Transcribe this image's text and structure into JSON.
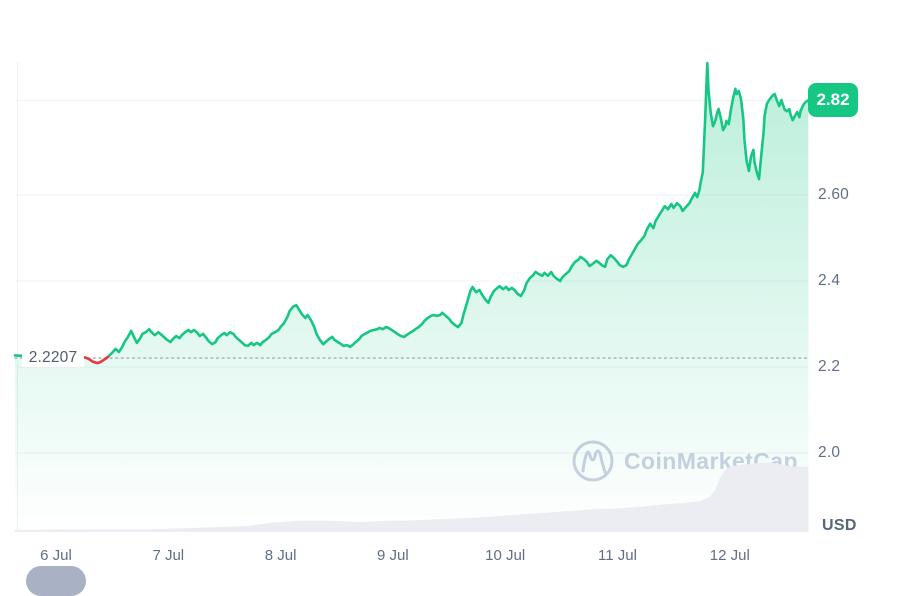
{
  "price_badge": {
    "label": "2.82",
    "color": "#16c784"
  },
  "baseline": {
    "label": "2.2207"
  },
  "axis": {
    "currency_label": "USD",
    "y_labels": [
      "2.60",
      "2.4",
      "2.2",
      "2.0"
    ],
    "x_labels": [
      "6 Jul",
      "7 Jul",
      "8 Jul",
      "9 Jul",
      "10 Jul",
      "11 Jul",
      "12 Jul"
    ]
  },
  "watermark": {
    "label": "CoinMarketCap"
  },
  "chart_data": {
    "type": "area",
    "ylabel": "USD",
    "x_unit": "days since 6 Jul 00:00",
    "ylim": [
      1.95,
      2.95
    ],
    "x_range_days": [
      -0.365,
      6.7
    ],
    "grid": "horizontal",
    "baseline_price": 2.2207,
    "last_price": 2.82,
    "high_price": 2.907,
    "line_color": "#16c784",
    "down_color": "#ea3943",
    "y_axis": {
      "gridline_prices": [
        2.82,
        2.6,
        2.4,
        2.2,
        2.0
      ],
      "ticks": [
        {
          "price": 2.6,
          "label": "2.60"
        },
        {
          "price": 2.4,
          "label": "2.4"
        },
        {
          "price": 2.2,
          "label": "2.2"
        },
        {
          "price": 2.0,
          "label": "2.0"
        }
      ]
    },
    "x_axis": {
      "ticks": [
        {
          "day": 0,
          "label": "6 Jul"
        },
        {
          "day": 1,
          "label": "7 Jul"
        },
        {
          "day": 2,
          "label": "8 Jul"
        },
        {
          "day": 3,
          "label": "9 Jul"
        },
        {
          "day": 4,
          "label": "10 Jul"
        },
        {
          "day": 5,
          "label": "11 Jul"
        },
        {
          "day": 6,
          "label": "12 Jul"
        }
      ]
    },
    "price": {
      "name": "price-usd",
      "red_segment_days": [
        0.26,
        0.47
      ],
      "points": [
        [
          -0.365,
          2.227
        ],
        [
          -0.3,
          2.226
        ],
        [
          -0.23,
          2.224
        ],
        [
          -0.14,
          2.223
        ],
        [
          -0.05,
          2.223
        ],
        [
          0.04,
          2.223
        ],
        [
          0.12,
          2.224
        ],
        [
          0.2,
          2.223
        ],
        [
          0.26,
          2.222
        ],
        [
          0.29,
          2.219
        ],
        [
          0.33,
          2.212
        ],
        [
          0.37,
          2.209
        ],
        [
          0.4,
          2.212
        ],
        [
          0.44,
          2.219
        ],
        [
          0.46,
          2.223
        ],
        [
          0.5,
          2.233
        ],
        [
          0.53,
          2.242
        ],
        [
          0.56,
          2.235
        ],
        [
          0.59,
          2.247
        ],
        [
          0.61,
          2.258
        ],
        [
          0.64,
          2.27
        ],
        [
          0.67,
          2.284
        ],
        [
          0.69,
          2.272
        ],
        [
          0.72,
          2.256
        ],
        [
          0.75,
          2.267
        ],
        [
          0.77,
          2.277
        ],
        [
          0.8,
          2.281
        ],
        [
          0.83,
          2.288
        ],
        [
          0.85,
          2.281
        ],
        [
          0.88,
          2.274
        ],
        [
          0.91,
          2.281
        ],
        [
          0.93,
          2.277
        ],
        [
          0.96,
          2.27
        ],
        [
          0.99,
          2.263
        ],
        [
          1.02,
          2.258
        ],
        [
          1.04,
          2.265
        ],
        [
          1.07,
          2.272
        ],
        [
          1.1,
          2.267
        ],
        [
          1.12,
          2.274
        ],
        [
          1.15,
          2.281
        ],
        [
          1.18,
          2.286
        ],
        [
          1.2,
          2.281
        ],
        [
          1.23,
          2.286
        ],
        [
          1.26,
          2.279
        ],
        [
          1.28,
          2.272
        ],
        [
          1.31,
          2.277
        ],
        [
          1.34,
          2.267
        ],
        [
          1.36,
          2.26
        ],
        [
          1.39,
          2.253
        ],
        [
          1.42,
          2.258
        ],
        [
          1.44,
          2.267
        ],
        [
          1.47,
          2.274
        ],
        [
          1.5,
          2.279
        ],
        [
          1.52,
          2.274
        ],
        [
          1.55,
          2.281
        ],
        [
          1.58,
          2.277
        ],
        [
          1.6,
          2.27
        ],
        [
          1.63,
          2.263
        ],
        [
          1.66,
          2.256
        ],
        [
          1.68,
          2.251
        ],
        [
          1.71,
          2.249
        ],
        [
          1.74,
          2.256
        ],
        [
          1.76,
          2.251
        ],
        [
          1.79,
          2.256
        ],
        [
          1.82,
          2.251
        ],
        [
          1.84,
          2.258
        ],
        [
          1.87,
          2.263
        ],
        [
          1.9,
          2.27
        ],
        [
          1.92,
          2.277
        ],
        [
          1.95,
          2.281
        ],
        [
          1.98,
          2.286
        ],
        [
          2.0,
          2.293
        ],
        [
          2.03,
          2.302
        ],
        [
          2.06,
          2.316
        ],
        [
          2.08,
          2.33
        ],
        [
          2.11,
          2.34
        ],
        [
          2.14,
          2.344
        ],
        [
          2.16,
          2.335
        ],
        [
          2.19,
          2.323
        ],
        [
          2.22,
          2.314
        ],
        [
          2.24,
          2.321
        ],
        [
          2.27,
          2.309
        ],
        [
          2.3,
          2.293
        ],
        [
          2.32,
          2.277
        ],
        [
          2.35,
          2.263
        ],
        [
          2.38,
          2.253
        ],
        [
          2.4,
          2.258
        ],
        [
          2.43,
          2.265
        ],
        [
          2.46,
          2.27
        ],
        [
          2.48,
          2.263
        ],
        [
          2.51,
          2.258
        ],
        [
          2.54,
          2.253
        ],
        [
          2.56,
          2.249
        ],
        [
          2.59,
          2.251
        ],
        [
          2.62,
          2.247
        ],
        [
          2.64,
          2.251
        ],
        [
          2.67,
          2.258
        ],
        [
          2.7,
          2.265
        ],
        [
          2.72,
          2.272
        ],
        [
          2.75,
          2.277
        ],
        [
          2.78,
          2.281
        ],
        [
          2.8,
          2.284
        ],
        [
          2.83,
          2.286
        ],
        [
          2.86,
          2.288
        ],
        [
          2.88,
          2.291
        ],
        [
          2.91,
          2.288
        ],
        [
          2.94,
          2.293
        ],
        [
          2.96,
          2.291
        ],
        [
          2.99,
          2.286
        ],
        [
          3.02,
          2.281
        ],
        [
          3.04,
          2.277
        ],
        [
          3.07,
          2.272
        ],
        [
          3.1,
          2.27
        ],
        [
          3.12,
          2.274
        ],
        [
          3.15,
          2.279
        ],
        [
          3.18,
          2.284
        ],
        [
          3.2,
          2.288
        ],
        [
          3.23,
          2.293
        ],
        [
          3.26,
          2.3
        ],
        [
          3.28,
          2.307
        ],
        [
          3.31,
          2.314
        ],
        [
          3.34,
          2.319
        ],
        [
          3.36,
          2.321
        ],
        [
          3.39,
          2.319
        ],
        [
          3.42,
          2.321
        ],
        [
          3.44,
          2.326
        ],
        [
          3.47,
          2.319
        ],
        [
          3.5,
          2.312
        ],
        [
          3.52,
          2.305
        ],
        [
          3.55,
          2.298
        ],
        [
          3.58,
          2.293
        ],
        [
          3.61,
          2.302
        ],
        [
          3.63,
          2.323
        ],
        [
          3.66,
          2.349
        ],
        [
          3.69,
          2.377
        ],
        [
          3.71,
          2.386
        ],
        [
          3.74,
          2.374
        ],
        [
          3.77,
          2.379
        ],
        [
          3.79,
          2.37
        ],
        [
          3.82,
          2.358
        ],
        [
          3.85,
          2.349
        ],
        [
          3.87,
          2.363
        ],
        [
          3.9,
          2.377
        ],
        [
          3.93,
          2.384
        ],
        [
          3.95,
          2.388
        ],
        [
          3.98,
          2.381
        ],
        [
          4.01,
          2.386
        ],
        [
          4.03,
          2.379
        ],
        [
          4.06,
          2.384
        ],
        [
          4.09,
          2.377
        ],
        [
          4.11,
          2.37
        ],
        [
          4.14,
          2.365
        ],
        [
          4.17,
          2.379
        ],
        [
          4.19,
          2.395
        ],
        [
          4.22,
          2.407
        ],
        [
          4.25,
          2.414
        ],
        [
          4.27,
          2.421
        ],
        [
          4.3,
          2.416
        ],
        [
          4.33,
          2.412
        ],
        [
          4.35,
          2.419
        ],
        [
          4.38,
          2.412
        ],
        [
          4.41,
          2.421
        ],
        [
          4.43,
          2.412
        ],
        [
          4.46,
          2.405
        ],
        [
          4.49,
          2.4
        ],
        [
          4.51,
          2.409
        ],
        [
          4.54,
          2.416
        ],
        [
          4.57,
          2.423
        ],
        [
          4.59,
          2.433
        ],
        [
          4.62,
          2.444
        ],
        [
          4.65,
          2.449
        ],
        [
          4.67,
          2.456
        ],
        [
          4.7,
          2.451
        ],
        [
          4.73,
          2.444
        ],
        [
          4.75,
          2.435
        ],
        [
          4.78,
          2.44
        ],
        [
          4.81,
          2.447
        ],
        [
          4.83,
          2.444
        ],
        [
          4.86,
          2.437
        ],
        [
          4.89,
          2.433
        ],
        [
          4.91,
          2.451
        ],
        [
          4.94,
          2.46
        ],
        [
          4.97,
          2.453
        ],
        [
          5.0,
          2.444
        ],
        [
          5.02,
          2.437
        ],
        [
          5.05,
          2.433
        ],
        [
          5.08,
          2.437
        ],
        [
          5.1,
          2.449
        ],
        [
          5.13,
          2.463
        ],
        [
          5.16,
          2.477
        ],
        [
          5.18,
          2.486
        ],
        [
          5.21,
          2.495
        ],
        [
          5.24,
          2.505
        ],
        [
          5.26,
          2.519
        ],
        [
          5.29,
          2.533
        ],
        [
          5.32,
          2.523
        ],
        [
          5.34,
          2.54
        ],
        [
          5.37,
          2.553
        ],
        [
          5.4,
          2.565
        ],
        [
          5.42,
          2.574
        ],
        [
          5.45,
          2.567
        ],
        [
          5.48,
          2.579
        ],
        [
          5.5,
          2.57
        ],
        [
          5.53,
          2.581
        ],
        [
          5.56,
          2.574
        ],
        [
          5.58,
          2.563
        ],
        [
          5.61,
          2.572
        ],
        [
          5.64,
          2.581
        ],
        [
          5.66,
          2.591
        ],
        [
          5.69,
          2.605
        ],
        [
          5.71,
          2.595
        ],
        [
          5.73,
          2.612
        ],
        [
          5.74,
          2.628
        ],
        [
          5.76,
          2.653
        ],
        [
          5.78,
          2.774
        ],
        [
          5.8,
          2.907
        ],
        [
          5.81,
          2.844
        ],
        [
          5.83,
          2.791
        ],
        [
          5.85,
          2.76
        ],
        [
          5.87,
          2.772
        ],
        [
          5.89,
          2.793
        ],
        [
          5.9,
          2.8
        ],
        [
          5.92,
          2.779
        ],
        [
          5.94,
          2.751
        ],
        [
          5.96,
          2.76
        ],
        [
          5.97,
          2.772
        ],
        [
          5.99,
          2.765
        ],
        [
          6.01,
          2.798
        ],
        [
          6.03,
          2.826
        ],
        [
          6.05,
          2.847
        ],
        [
          6.06,
          2.835
        ],
        [
          6.08,
          2.842
        ],
        [
          6.1,
          2.823
        ],
        [
          6.12,
          2.777
        ],
        [
          6.13,
          2.73
        ],
        [
          6.15,
          2.679
        ],
        [
          6.17,
          2.656
        ],
        [
          6.19,
          2.691
        ],
        [
          6.21,
          2.705
        ],
        [
          6.22,
          2.677
        ],
        [
          6.24,
          2.653
        ],
        [
          6.26,
          2.637
        ],
        [
          6.28,
          2.691
        ],
        [
          6.3,
          2.744
        ],
        [
          6.31,
          2.784
        ],
        [
          6.33,
          2.812
        ],
        [
          6.35,
          2.821
        ],
        [
          6.37,
          2.828
        ],
        [
          6.38,
          2.831
        ],
        [
          6.4,
          2.835
        ],
        [
          6.42,
          2.819
        ],
        [
          6.44,
          2.807
        ],
        [
          6.46,
          2.821
        ],
        [
          6.47,
          2.812
        ],
        [
          6.49,
          2.798
        ],
        [
          6.51,
          2.795
        ],
        [
          6.53,
          2.8
        ],
        [
          6.54,
          2.788
        ],
        [
          6.56,
          2.774
        ],
        [
          6.58,
          2.784
        ],
        [
          6.6,
          2.793
        ],
        [
          6.62,
          2.781
        ],
        [
          6.63,
          2.795
        ],
        [
          6.65,
          2.807
        ],
        [
          6.67,
          2.815
        ],
        [
          6.69,
          2.819
        ],
        [
          6.7,
          2.82
        ]
      ]
    },
    "volume": {
      "name": "volume-silhouette",
      "unit": "relative 0-1",
      "points": [
        [
          -0.365,
          0.03
        ],
        [
          0.39,
          0.04
        ],
        [
          0.84,
          0.04
        ],
        [
          1.28,
          0.06
        ],
        [
          1.73,
          0.09
        ],
        [
          1.91,
          0.13
        ],
        [
          2.17,
          0.16
        ],
        [
          2.44,
          0.16
        ],
        [
          2.71,
          0.14
        ],
        [
          2.97,
          0.16
        ],
        [
          3.24,
          0.17
        ],
        [
          3.51,
          0.19
        ],
        [
          3.78,
          0.21
        ],
        [
          4.04,
          0.24
        ],
        [
          4.31,
          0.27
        ],
        [
          4.58,
          0.3
        ],
        [
          4.84,
          0.33
        ],
        [
          5.02,
          0.34
        ],
        [
          5.2,
          0.36
        ],
        [
          5.38,
          0.39
        ],
        [
          5.56,
          0.41
        ],
        [
          5.73,
          0.44
        ],
        [
          5.82,
          0.5
        ],
        [
          5.87,
          0.6
        ],
        [
          5.91,
          0.77
        ],
        [
          5.96,
          0.89
        ],
        [
          6.0,
          0.93
        ],
        [
          6.09,
          0.96
        ],
        [
          6.18,
          0.97
        ],
        [
          6.27,
          0.99
        ],
        [
          6.36,
          0.99
        ],
        [
          6.45,
          0.97
        ],
        [
          6.54,
          0.94
        ],
        [
          6.63,
          0.93
        ],
        [
          6.7,
          0.94
        ]
      ]
    }
  }
}
